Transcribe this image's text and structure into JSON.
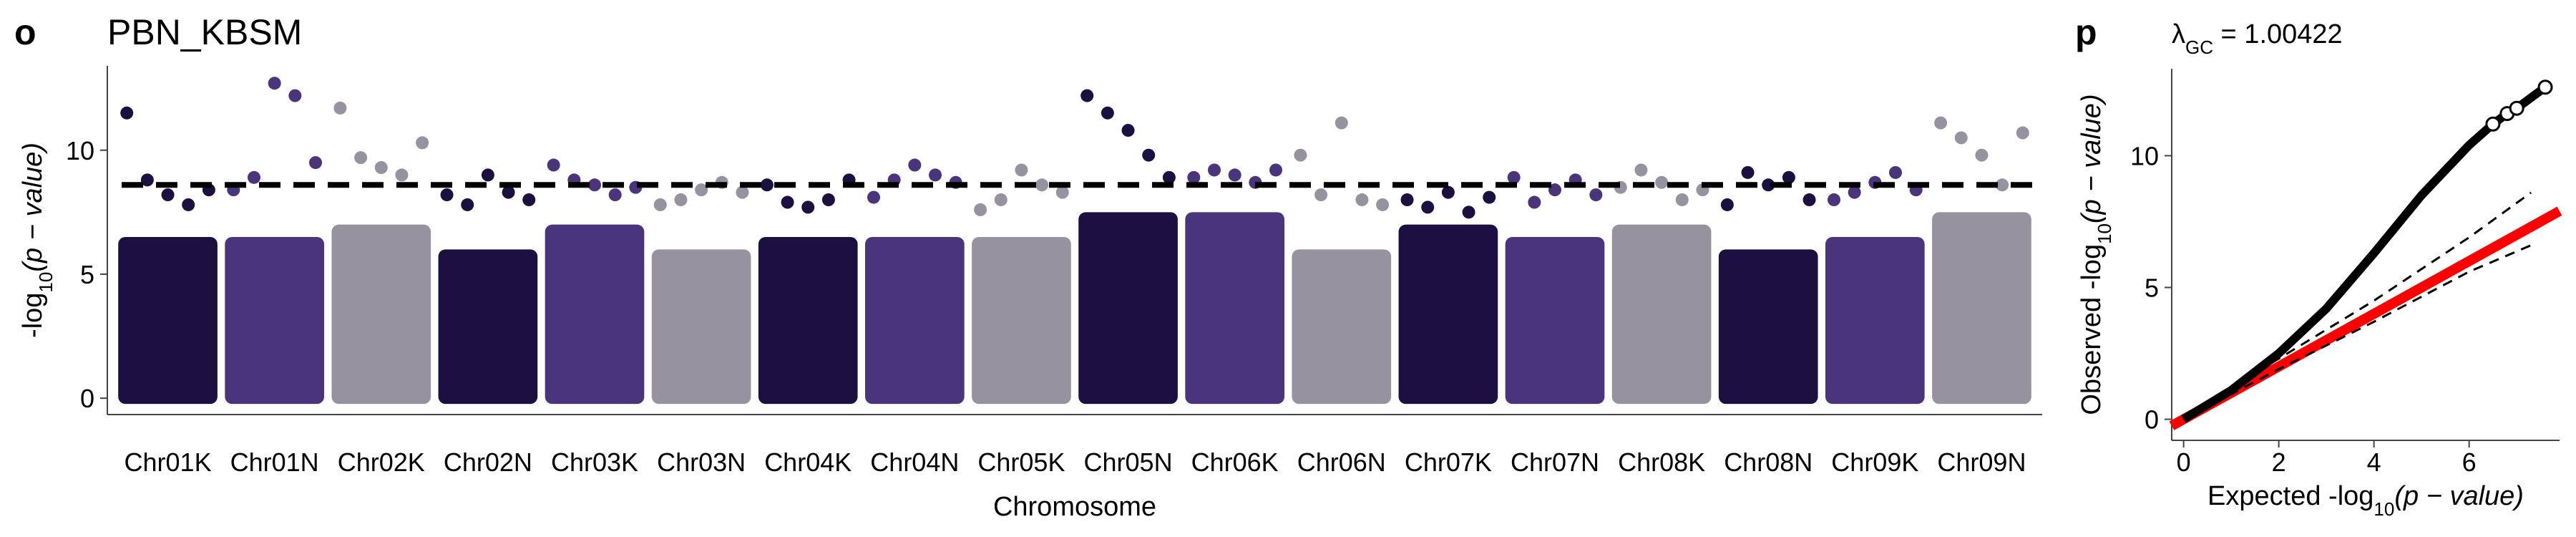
{
  "chart_data": [
    {
      "type": "manhattan",
      "panel": "o",
      "title": "PBN_KBSM",
      "ylabel": [
        "-log",
        "10",
        "(p − value)"
      ],
      "xlabel": "Chromosome",
      "categories": [
        "Chr01K",
        "Chr01N",
        "Chr02K",
        "Chr02N",
        "Chr03K",
        "Chr03N",
        "Chr04K",
        "Chr04N",
        "Chr05K",
        "Chr05N",
        "Chr06K",
        "Chr06N",
        "Chr07K",
        "Chr07N",
        "Chr08K",
        "Chr08N",
        "Chr09K",
        "Chr09N"
      ],
      "colors": [
        "#1c1040",
        "#4a357c",
        "#97929f",
        "#1c1040",
        "#4a357c",
        "#97929f",
        "#1c1040",
        "#4a357c",
        "#97929f",
        "#1c1040",
        "#4a357c",
        "#97929f",
        "#1c1040",
        "#4a357c",
        "#97929f",
        "#1c1040",
        "#4a357c",
        "#97929f"
      ],
      "envelope": [
        6.5,
        6.5,
        7,
        6,
        7,
        6,
        6.5,
        6.5,
        6.5,
        7.5,
        7.5,
        6,
        7,
        6.5,
        7,
        6,
        6.5,
        7.5
      ],
      "top_hits": [
        [
          11.5,
          8.8,
          8.2,
          7.8,
          8.4
        ],
        [
          8.4,
          8.9,
          12.7,
          12.2,
          9.5
        ],
        [
          11.7,
          9.7,
          9.3,
          9.0,
          10.3
        ],
        [
          8.2,
          7.8,
          9.0,
          8.3,
          8.0
        ],
        [
          9.4,
          8.8,
          8.6,
          8.2,
          8.5
        ],
        [
          7.8,
          8.0,
          8.4,
          8.7,
          8.3
        ],
        [
          8.6,
          7.9,
          7.7,
          8.0,
          8.8
        ],
        [
          8.1,
          8.8,
          9.4,
          9.0,
          8.7
        ],
        [
          7.6,
          8.0,
          9.2,
          8.6,
          8.3
        ],
        [
          12.2,
          11.5,
          10.8,
          9.8,
          8.9
        ],
        [
          8.9,
          9.2,
          9.0,
          8.7,
          9.2
        ],
        [
          9.8,
          8.2,
          11.1,
          8.0,
          7.8
        ],
        [
          8.0,
          7.7,
          8.3,
          7.5,
          8.1
        ],
        [
          8.9,
          7.9,
          8.4,
          8.8,
          8.2
        ],
        [
          8.5,
          9.2,
          8.7,
          8.0,
          8.4
        ],
        [
          7.8,
          9.1,
          8.6,
          8.9,
          8.0
        ],
        [
          8.0,
          8.3,
          8.7,
          9.1,
          8.4
        ],
        [
          11.1,
          10.5,
          9.8,
          8.6,
          10.7
        ]
      ],
      "threshold": 8.6,
      "ylim": [
        -0.66,
        13.4
      ],
      "yticks": [
        0,
        5,
        10
      ]
    },
    {
      "type": "qq",
      "panel": "p",
      "annotation": [
        "λ",
        "GC",
        " = 1.00422"
      ],
      "ylabel": [
        "Observed -log",
        "10",
        "(p − value)"
      ],
      "xlabel": [
        "Expected -log",
        "10",
        "(p − value)"
      ],
      "x": [
        0,
        1,
        2,
        3,
        4,
        5,
        6,
        6.5,
        6.8,
        7.0,
        7.6
      ],
      "y": [
        0,
        1.1,
        2.5,
        4.2,
        6.3,
        8.5,
        10.4,
        11.2,
        11.6,
        11.8,
        12.6
      ],
      "ci_x": [
        0,
        2,
        4,
        6,
        7.3
      ],
      "ci_upper": [
        0.1,
        2.3,
        4.5,
        6.9,
        8.6
      ],
      "ci_lower": [
        0,
        1.9,
        3.7,
        5.6,
        6.6
      ],
      "reference_color": "#ff0000",
      "xlim": [
        -0.25,
        7.9
      ],
      "ylim": [
        -0.8,
        13.3
      ],
      "xticks": [
        0,
        2,
        4,
        6
      ],
      "yticks": [
        0,
        5,
        10
      ]
    }
  ]
}
